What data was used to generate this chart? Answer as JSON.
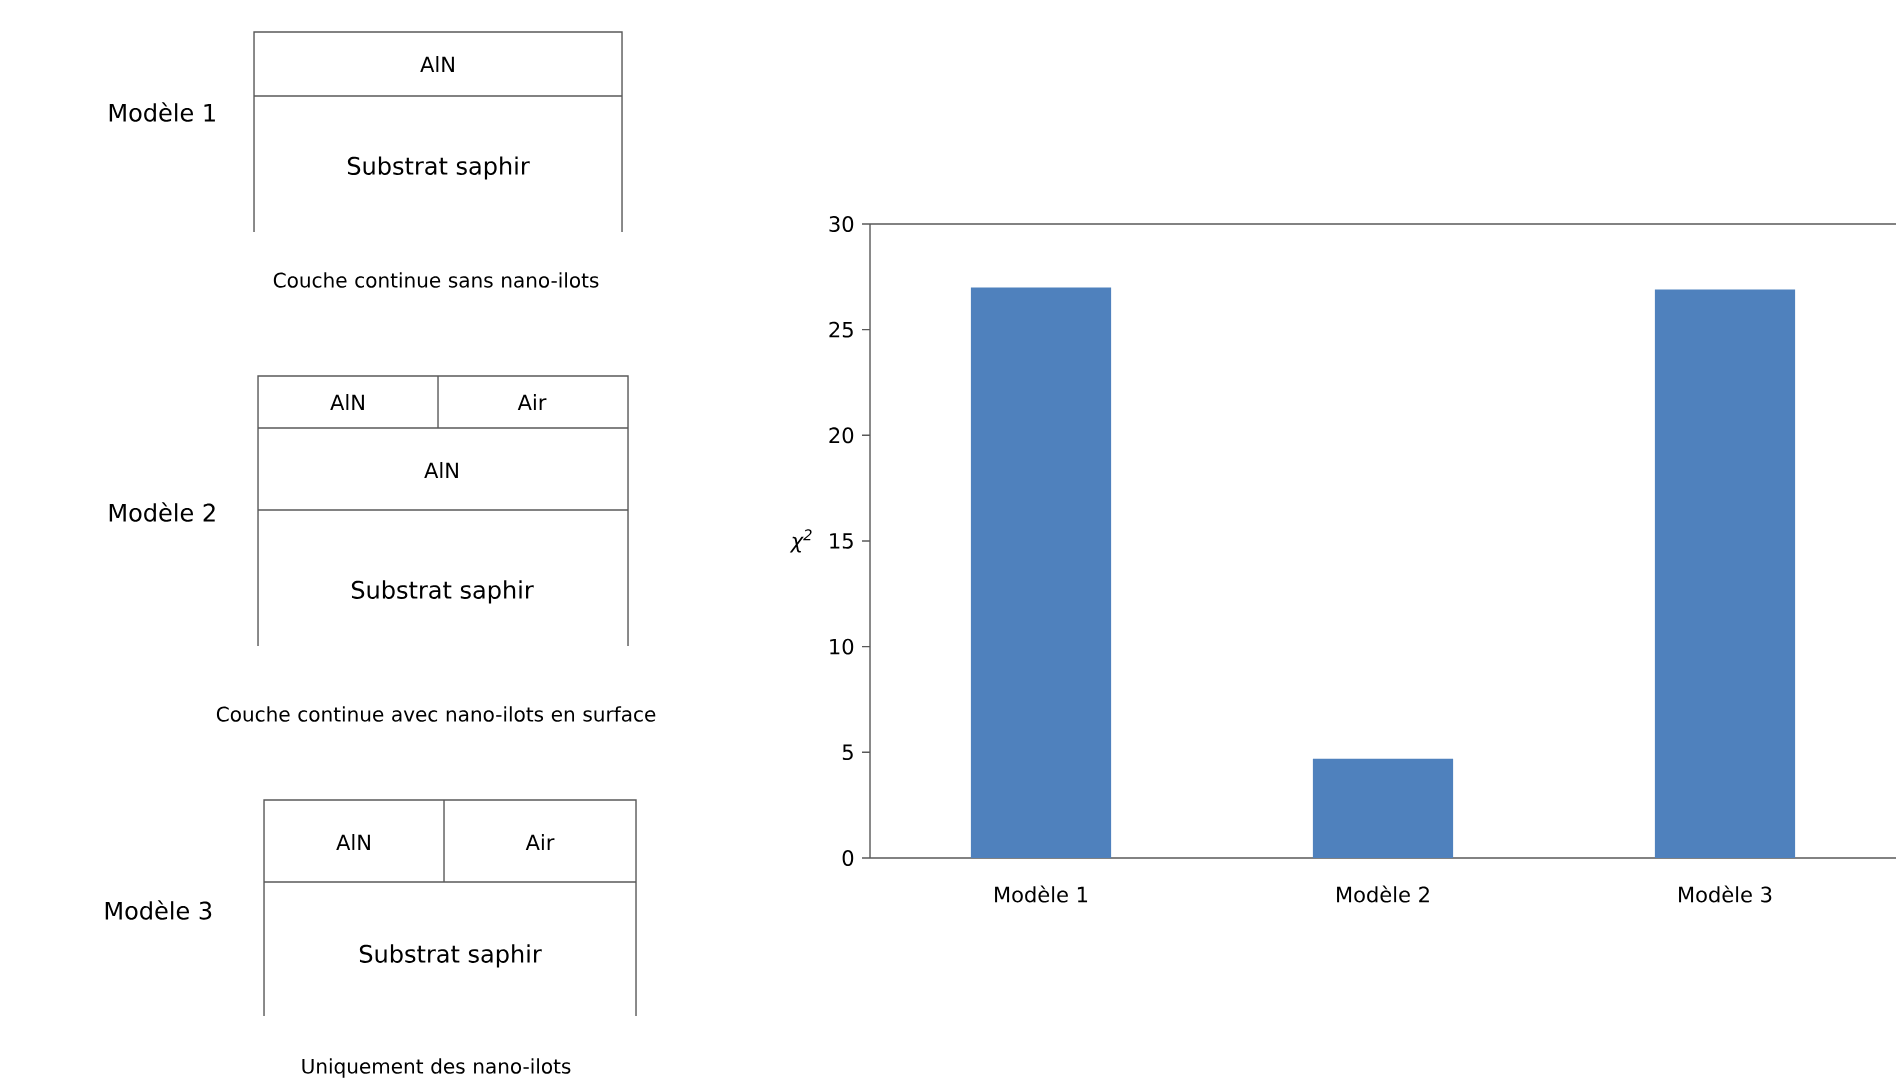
{
  "chart_data": [
    {
      "type": "other",
      "annotations": [
        "Modèle 1",
        "AlN",
        "Substrat saphir",
        "Couche continue sans nano-ilots",
        "Modèle 2",
        "AlN",
        "Air",
        "AlN",
        "Substrat saphir",
        "Couche continue avec nano-ilots en surface",
        "Modèle 3",
        "AlN",
        "Air",
        "Substrat saphir",
        "Uniquement des nano-ilots"
      ]
    },
    {
      "type": "bar",
      "ylabel": "χ$^{2}$",
      "categories": [
        "Modèle 1",
        "Modèle 2",
        "Modèle 3"
      ],
      "values": [
        27.0,
        4.7,
        26.9
      ],
      "color": "#4f81bd",
      "ylim": [
        0,
        30
      ],
      "yticks": [
        0,
        5,
        10,
        15,
        20,
        25,
        30
      ]
    }
  ]
}
